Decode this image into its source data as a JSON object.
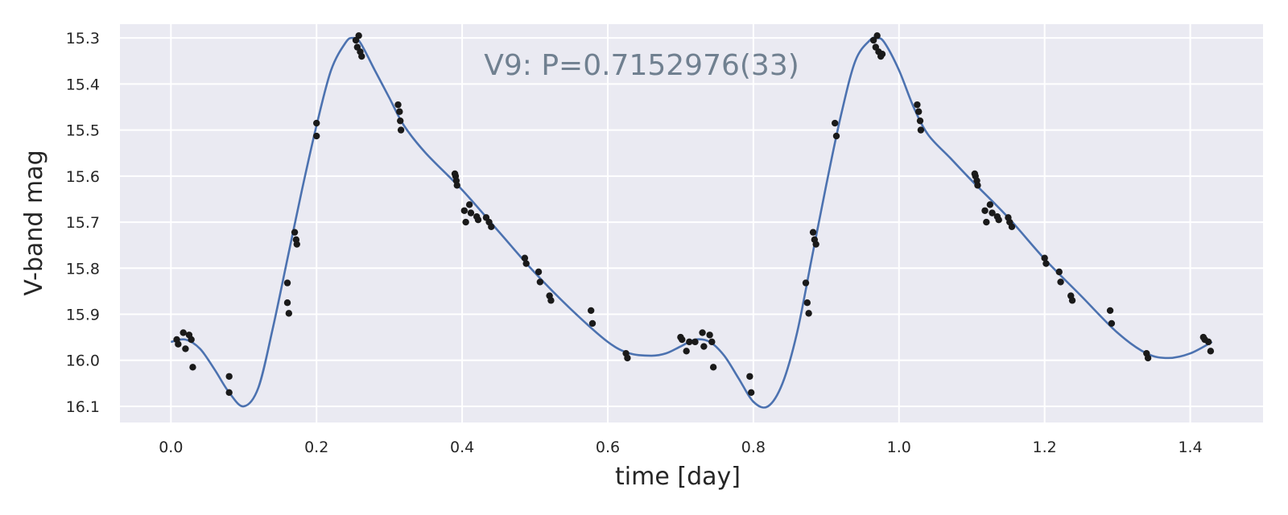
{
  "chart_data": {
    "type": "scatter",
    "title": "",
    "annotation": "V9: P=0.7152976(33)",
    "xlabel": "time [day]",
    "ylabel": "V-band mag",
    "xlim": [
      -0.07,
      1.5
    ],
    "ylim": [
      16.135,
      15.27
    ],
    "y_inverted": true,
    "grid": true,
    "background": "#eaeaf2",
    "grid_color": "#ffffff",
    "line_color": "#4c72b0",
    "point_color": "#1a1a1a",
    "x_ticks": [
      0.0,
      0.2,
      0.4,
      0.6,
      0.8,
      1.0,
      1.2,
      1.4
    ],
    "x_tick_labels": [
      "0.0",
      "0.2",
      "0.4",
      "0.6",
      "0.8",
      "1.0",
      "1.2",
      "1.4"
    ],
    "y_ticks": [
      15.3,
      15.4,
      15.5,
      15.6,
      15.7,
      15.8,
      15.9,
      16.0,
      16.1
    ],
    "y_tick_labels": [
      "15.3",
      "15.4",
      "15.5",
      "15.6",
      "15.7",
      "15.8",
      "15.9",
      "16.0",
      "16.1"
    ],
    "series": [
      {
        "kind": "line",
        "x": [
          0.0,
          0.02,
          0.04,
          0.06,
          0.08,
          0.1,
          0.12,
          0.14,
          0.16,
          0.18,
          0.2,
          0.22,
          0.24,
          0.25,
          0.26,
          0.28,
          0.3,
          0.32,
          0.35,
          0.4,
          0.45,
          0.5,
          0.55,
          0.6,
          0.63,
          0.66,
          0.68,
          0.7,
          0.72,
          0.74,
          0.76,
          0.78,
          0.8,
          0.82,
          0.84,
          0.86,
          0.88,
          0.9,
          0.92,
          0.94,
          0.96,
          0.97,
          0.98,
          1.0,
          1.02,
          1.04,
          1.07,
          1.1,
          1.15,
          1.2,
          1.25,
          1.3,
          1.34,
          1.37,
          1.4,
          1.43
        ],
        "y": [
          15.96,
          15.955,
          15.975,
          16.02,
          16.07,
          16.1,
          16.06,
          15.93,
          15.78,
          15.63,
          15.49,
          15.37,
          15.31,
          15.3,
          15.31,
          15.37,
          15.43,
          15.49,
          15.55,
          15.63,
          15.72,
          15.81,
          15.89,
          15.96,
          15.985,
          15.99,
          15.985,
          15.97,
          15.955,
          15.96,
          15.99,
          16.04,
          16.09,
          16.1,
          16.05,
          15.94,
          15.78,
          15.62,
          15.47,
          15.35,
          15.305,
          15.3,
          15.31,
          15.37,
          15.45,
          15.51,
          15.56,
          15.61,
          15.69,
          15.78,
          15.86,
          15.94,
          15.985,
          15.995,
          15.985,
          15.96
        ]
      },
      {
        "kind": "scatter",
        "x": [
          0.008,
          0.01,
          0.017,
          0.02,
          0.025,
          0.028,
          0.03,
          0.08,
          0.08,
          0.16,
          0.16,
          0.162,
          0.17,
          0.172,
          0.173,
          0.2,
          0.2,
          0.254,
          0.256,
          0.258,
          0.26,
          0.262,
          0.312,
          0.314,
          0.315,
          0.316,
          0.39,
          0.391,
          0.392,
          0.393,
          0.403,
          0.405,
          0.41,
          0.412,
          0.42,
          0.422,
          0.433,
          0.437,
          0.44,
          0.486,
          0.488,
          0.505,
          0.507,
          0.52,
          0.522,
          0.577,
          0.579,
          0.625,
          0.627,
          0.7,
          0.702,
          0.708,
          0.712,
          0.72,
          0.73,
          0.732,
          0.74,
          0.743,
          0.745,
          0.795,
          0.797,
          0.872,
          0.874,
          0.876,
          0.882,
          0.884,
          0.886,
          0.912,
          0.914,
          0.965,
          0.968,
          0.97,
          0.972,
          0.975,
          0.977,
          1.025,
          1.027,
          1.029,
          1.03,
          1.104,
          1.105,
          1.107,
          1.108,
          1.118,
          1.12,
          1.125,
          1.128,
          1.135,
          1.137,
          1.15,
          1.152,
          1.155,
          1.2,
          1.202,
          1.22,
          1.222,
          1.236,
          1.238,
          1.29,
          1.292,
          1.34,
          1.342,
          1.418,
          1.42,
          1.425,
          1.428
        ],
        "y": [
          15.955,
          15.965,
          15.94,
          15.975,
          15.945,
          15.955,
          16.015,
          16.035,
          16.07,
          15.832,
          15.875,
          15.898,
          15.722,
          15.738,
          15.748,
          15.485,
          15.513,
          15.305,
          15.32,
          15.295,
          15.33,
          15.34,
          15.445,
          15.46,
          15.48,
          15.5,
          15.595,
          15.6,
          15.61,
          15.62,
          15.675,
          15.7,
          15.662,
          15.68,
          15.688,
          15.695,
          15.69,
          15.7,
          15.71,
          15.778,
          15.79,
          15.808,
          15.83,
          15.86,
          15.87,
          15.892,
          15.92,
          15.985,
          15.995,
          15.95,
          15.955,
          15.98,
          15.96,
          15.96,
          15.94,
          15.97,
          15.945,
          15.96,
          16.015,
          16.035,
          16.07,
          15.832,
          15.875,
          15.898,
          15.722,
          15.738,
          15.748,
          15.485,
          15.513,
          15.305,
          15.32,
          15.295,
          15.33,
          15.34,
          15.335,
          15.445,
          15.46,
          15.48,
          15.5,
          15.595,
          15.6,
          15.61,
          15.62,
          15.675,
          15.7,
          15.662,
          15.68,
          15.688,
          15.695,
          15.69,
          15.7,
          15.71,
          15.778,
          15.79,
          15.808,
          15.83,
          15.86,
          15.87,
          15.892,
          15.92,
          15.985,
          15.995,
          15.95,
          15.955,
          15.96,
          15.98
        ]
      }
    ]
  }
}
